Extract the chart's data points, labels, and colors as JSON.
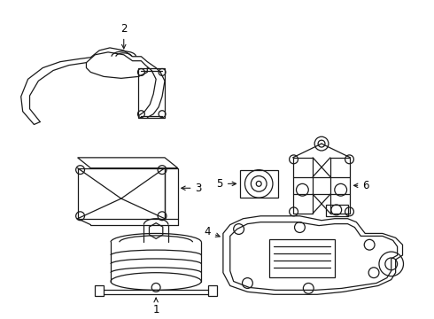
{
  "bg_color": "#ffffff",
  "line_color": "#1a1a1a",
  "line_width": 0.9,
  "label_fontsize": 8.5
}
